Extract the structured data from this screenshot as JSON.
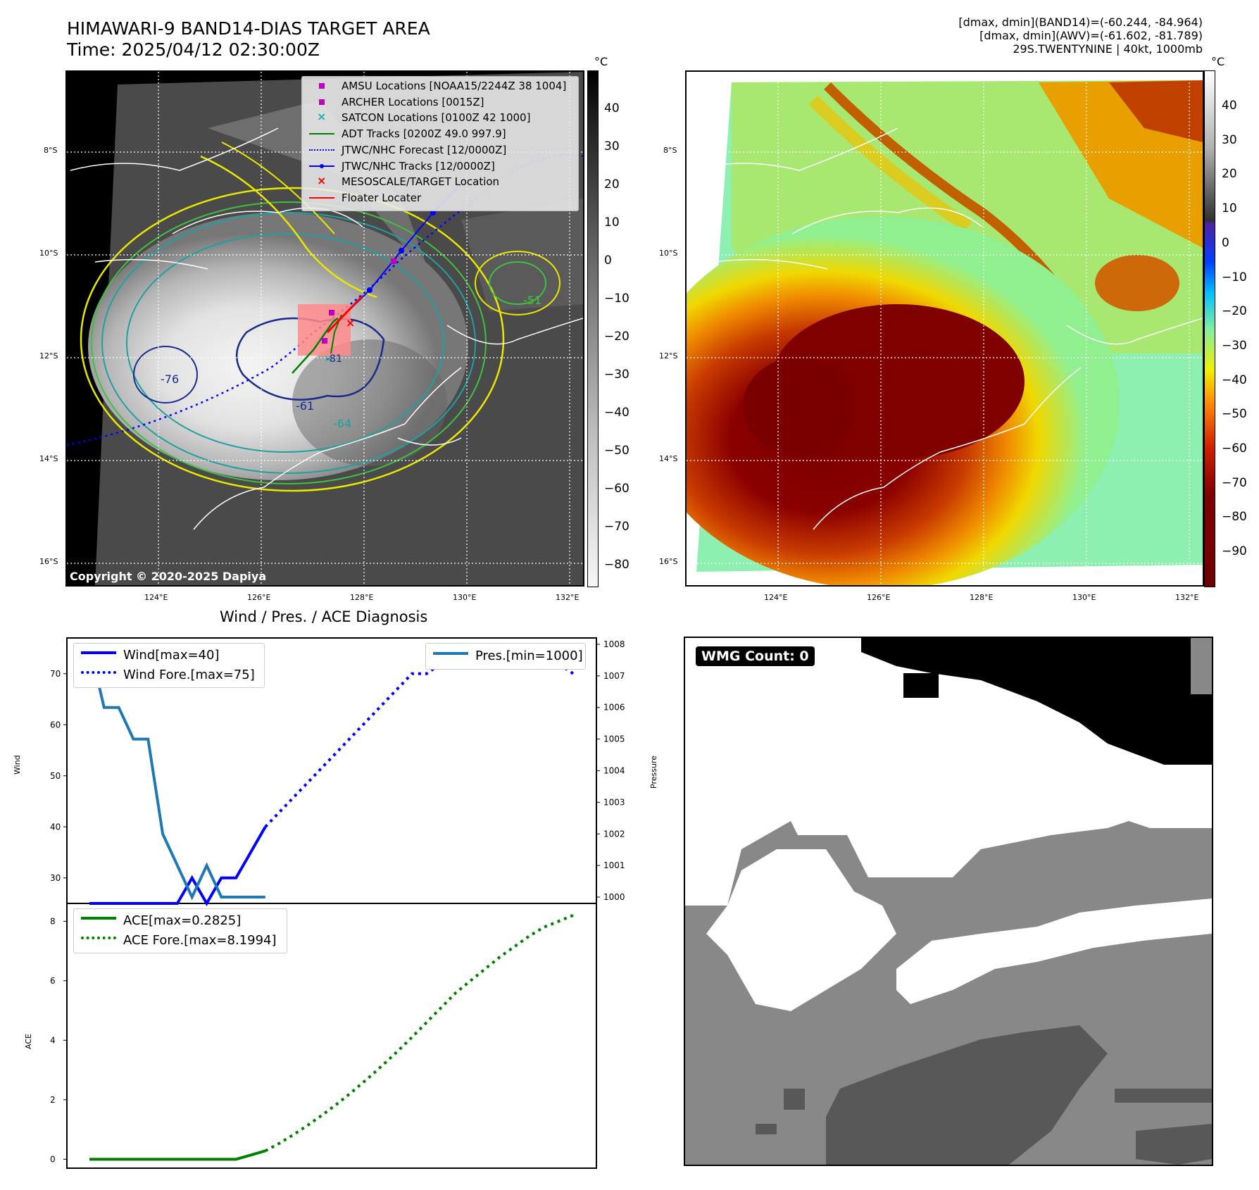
{
  "header": {
    "title_line1": "HIMAWARI-9 BAND14-DIAS TARGET AREA",
    "title_line2": "Time: 2025/04/12 02:30:00Z",
    "right_line1": "[dmax, dmin](BAND14)=(-60.244, -84.964)",
    "right_line2": "[dmax, dmin](AWV)=(-61.602, -81.789)",
    "right_line3": "29S.TWENTYNINE | 40kt, 1000mb"
  },
  "map_ticks": {
    "lat": [
      "8°S",
      "10°S",
      "12°S",
      "14°S",
      "16°S"
    ],
    "lon": [
      "124°E",
      "126°E",
      "128°E",
      "130°E",
      "132°E"
    ]
  },
  "copyright": "Copyright © 2020-2025 Dapiya",
  "contour_labels": [
    "-76",
    "-61",
    "-64",
    "-81",
    "-51"
  ],
  "colorbar_ir": {
    "unit": "°C",
    "ticks": [
      "40",
      "30",
      "20",
      "10",
      "0",
      "−10",
      "−20",
      "−30",
      "−40",
      "−50",
      "−60",
      "−70",
      "−80"
    ]
  },
  "colorbar_wv": {
    "unit": "°C",
    "ticks": [
      "40",
      "30",
      "20",
      "10",
      "0",
      "−10",
      "−20",
      "−30",
      "−40",
      "−50",
      "−60",
      "−70",
      "−80",
      "−90"
    ]
  },
  "map_legend": [
    {
      "label": "AMSU Locations [NOAA15/2244Z 38 1004]",
      "color": "#c000c0",
      "marker": "square"
    },
    {
      "label": "ARCHER Locations [0015Z]",
      "color": "#c000c0",
      "marker": "square"
    },
    {
      "label": "SATCON Locations [0100Z 42 1000]",
      "color": "#20b0b0",
      "marker": "x"
    },
    {
      "label": "ADT Tracks [0200Z 49.0 997.9]",
      "color": "#008000",
      "marker": "line"
    },
    {
      "label": "JTWC/NHC Forecast [12/0000Z]",
      "color": "#0000ff",
      "marker": "dotted"
    },
    {
      "label": "JTWC/NHC Tracks [12/0000Z]",
      "color": "#0000ff",
      "marker": "line-dot"
    },
    {
      "label": "MESOSCALE/TARGET Location",
      "color": "#ff0000",
      "marker": "x"
    },
    {
      "label": "Floater Locater",
      "color": "#ff0000",
      "marker": "line"
    }
  ],
  "diag_title": "Wind / Pres. / ACE Diagnosis",
  "wmg_label": "WMG Count: 0",
  "chart_data": [
    {
      "type": "line",
      "title": "Wind / Pres. / ACE Diagnosis",
      "ylabel": "Wind",
      "y2label": "Pressure",
      "ylim": [
        25,
        77
      ],
      "y2lim": [
        999.8,
        1008.2
      ],
      "yticks": [
        30,
        40,
        50,
        60,
        70
      ],
      "y2ticks": [
        1000,
        1001,
        1002,
        1003,
        1004,
        1005,
        1006,
        1007,
        1008
      ],
      "legend": [
        "Wind[max=40]",
        "Wind Fore.[max=75]",
        "Pres.[min=1000]"
      ],
      "series": [
        {
          "name": "Wind[max=40]",
          "axis": "left",
          "style": "solid",
          "color": "#0000ff",
          "x": [
            0,
            1,
            2,
            3,
            4,
            5,
            6,
            7,
            8,
            9,
            10,
            11,
            12
          ],
          "values": [
            25,
            25,
            25,
            25,
            25,
            25,
            25,
            30,
            25,
            30,
            30,
            35,
            40
          ]
        },
        {
          "name": "Wind Fore.[max=75]",
          "axis": "left",
          "style": "dotted",
          "color": "#0000ff",
          "x": [
            12,
            13,
            14,
            15,
            16,
            17,
            18,
            19,
            20,
            21,
            22,
            23,
            24,
            25,
            26,
            27,
            28,
            29,
            30,
            31,
            32,
            33
          ],
          "values": [
            40,
            43,
            46,
            49,
            52,
            55,
            58,
            61,
            64,
            67,
            70,
            70,
            72,
            72,
            72,
            73,
            74,
            74,
            73,
            72,
            72,
            70
          ]
        },
        {
          "name": "Pres.[min=1000]",
          "axis": "right",
          "style": "solid",
          "color": "#1f77b4",
          "x": [
            0,
            1,
            2,
            3,
            4,
            5,
            6,
            7,
            8,
            9,
            10,
            11,
            12
          ],
          "values": [
            1008,
            1006,
            1006,
            1005,
            1005,
            1002,
            1001,
            1000,
            1001,
            1000,
            1000,
            1000,
            1000
          ]
        }
      ]
    },
    {
      "type": "line",
      "ylabel": "ACE",
      "ylim": [
        -0.3,
        8.6
      ],
      "yticks": [
        0,
        2,
        4,
        6,
        8
      ],
      "legend": [
        "ACE[max=0.2825]",
        "ACE Fore.[max=8.1994]"
      ],
      "series": [
        {
          "name": "ACE[max=0.2825]",
          "style": "solid",
          "color": "#008000",
          "x": [
            0,
            1,
            2,
            3,
            4,
            5,
            6,
            7,
            8,
            9,
            10,
            11,
            12
          ],
          "values": [
            0,
            0,
            0,
            0,
            0,
            0,
            0,
            0,
            0,
            0,
            0,
            0.14,
            0.2825
          ]
        },
        {
          "name": "ACE Fore.[max=8.1994]",
          "style": "dotted",
          "color": "#008000",
          "x": [
            12,
            13,
            14,
            15,
            16,
            17,
            18,
            19,
            20,
            21,
            22,
            23,
            24,
            25,
            26,
            27,
            28,
            29,
            30,
            31,
            32,
            33
          ],
          "values": [
            0.2825,
            0.55,
            0.85,
            1.18,
            1.53,
            1.9,
            2.3,
            2.72,
            3.16,
            3.62,
            4.1,
            4.6,
            5.1,
            5.6,
            6.0,
            6.4,
            6.8,
            7.15,
            7.5,
            7.8,
            8.0,
            8.1994
          ]
        }
      ]
    }
  ]
}
